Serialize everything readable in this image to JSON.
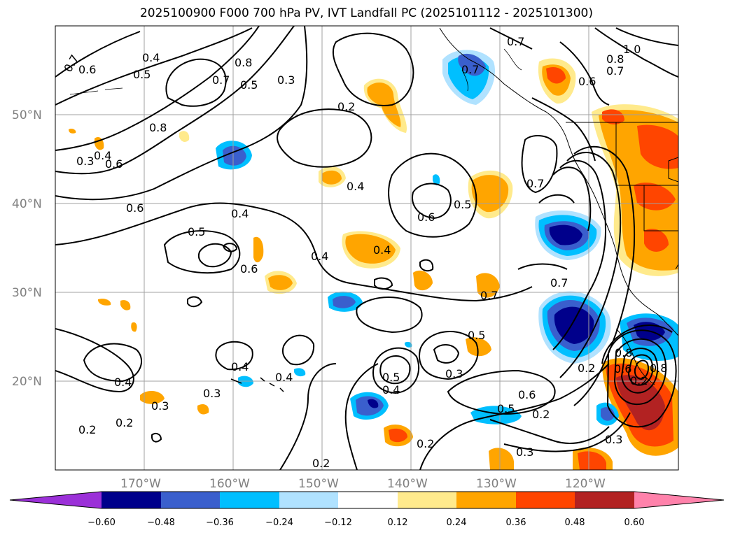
{
  "title": "2025100900 F000 700 hPa PV, IVT Landfall PC (2025101112 - 2025101300)",
  "map": {
    "lon_range": [
      -180,
      -110
    ],
    "lat_range": [
      10,
      60
    ],
    "lat_ticks": [
      "20°N",
      "30°N",
      "40°N",
      "50°N"
    ],
    "lon_ticks": [
      "170°W",
      "160°W",
      "150°W",
      "140°W",
      "130°W",
      "120°W"
    ],
    "grid": true
  },
  "colorbar": {
    "ticks": [
      "−0.60",
      "−0.48",
      "−0.36",
      "−0.24",
      "−0.12",
      "0.12",
      "0.24",
      "0.36",
      "0.48",
      "0.60"
    ],
    "colors": [
      "#9b30d8",
      "#00008b",
      "#3a5fcd",
      "#00bfff",
      "#b0e2ff",
      "#ffffff",
      "#ffea8c",
      "#ffa500",
      "#ff4500",
      "#b22222",
      "#ff82ab"
    ],
    "extend": "both"
  },
  "contour_labels": [
    "0.7",
    "0.6",
    "0.4",
    "0.5",
    "0.7",
    "0.8",
    "0.5",
    "0.3",
    "0.2",
    "0.8",
    "0.3",
    "0.4",
    "0.6",
    "0.6",
    "0.4",
    "0.5",
    "0.6",
    "0.4",
    "0.4",
    "0.4",
    "0.6",
    "0.5",
    "0.7",
    "0.7",
    "1.0",
    "0.8",
    "0.7",
    "0.6",
    "0.7",
    "0.7",
    "0.7",
    "0.5",
    "0.4",
    "0.4",
    "0.4",
    "0.3",
    "0.3",
    "0.2",
    "0.2",
    "0.2",
    "0.5",
    "0.4",
    "0.3",
    "0.5",
    "0.6",
    "0.2",
    "0.2",
    "0.3",
    "0.3",
    "0.2",
    "0.8",
    "0.8",
    "0.2",
    "0.6"
  ]
}
